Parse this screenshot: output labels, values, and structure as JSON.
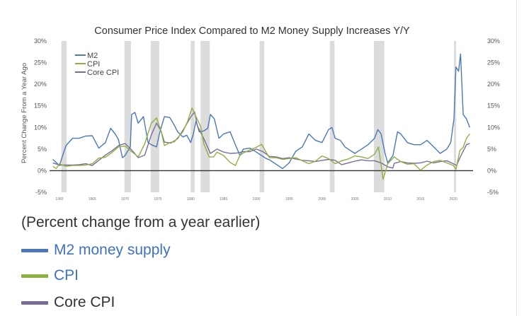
{
  "chart_data": {
    "type": "line",
    "title": "Consumer Price Index Compared to M2 Money Supply Increases Y/Y",
    "ylabel": "Percent Change From a Year Ago",
    "xlabel": "",
    "ylim": [
      -5,
      30
    ],
    "xlim": [
      1958.5,
      2023
    ],
    "y_ticks": [
      -5,
      0,
      5,
      10,
      15,
      20,
      25,
      30
    ],
    "y_tick_labels_left": [
      "-5%",
      "0%",
      "5%",
      "10%",
      "15%",
      "20%",
      "25%",
      "30%"
    ],
    "y_tick_labels_right": [
      "-5%",
      "0%",
      "5%",
      "10%",
      "15%",
      "20%",
      "25%",
      "30%"
    ],
    "x_ticks": [
      1960,
      1965,
      1970,
      1975,
      1980,
      1985,
      1990,
      1995,
      2000,
      2005,
      2010,
      2015,
      2020
    ],
    "x_tick_labels": [
      "1960",
      "1965",
      "1970",
      "1975",
      "1980",
      "1985",
      "1990",
      "1995",
      "2000",
      "2005",
      "2010",
      "2015",
      "2020"
    ],
    "recessions": [
      [
        1960.3,
        1961.1
      ],
      [
        1969.9,
        1970.9
      ],
      [
        1973.9,
        1975.2
      ],
      [
        1980.0,
        1980.6
      ],
      [
        1981.5,
        1982.9
      ],
      [
        1990.5,
        1991.2
      ],
      [
        2001.2,
        2001.9
      ],
      [
        2007.9,
        2009.5
      ],
      [
        2020.1,
        2020.4
      ]
    ],
    "series": [
      {
        "name": "M2",
        "color": "#4a78b8",
        "x": [
          1959,
          1960,
          1960.5,
          1961,
          1962,
          1963,
          1964,
          1965,
          1966,
          1967,
          1967.8,
          1968.5,
          1969,
          1969.6,
          1970,
          1970.8,
          1971,
          1971.5,
          1972,
          1972.8,
          1973.5,
          1974,
          1974.8,
          1975.3,
          1976,
          1976.8,
          1977.5,
          1978,
          1978.8,
          1979.4,
          1980,
          1980.4,
          1980.8,
          1981.3,
          1982,
          1982.6,
          1983,
          1983.6,
          1984.3,
          1985,
          1986,
          1986.8,
          1987.5,
          1988,
          1989,
          1989.8,
          1990.5,
          1991.5,
          1992,
          1993,
          1994,
          1995,
          1996,
          1997,
          1998,
          1999,
          2000,
          2001,
          2001.5,
          2002,
          2002.8,
          2003.5,
          2004,
          2005,
          2006,
          2007,
          2008,
          2008.5,
          2009,
          2009.6,
          2010,
          2010.8,
          2011.5,
          2012,
          2013,
          2014,
          2015,
          2016,
          2017,
          2018,
          2019,
          2019.6,
          2020.1,
          2020.4,
          2020.8,
          2021.1,
          2021.5,
          2022,
          2022.5
        ],
        "values": [
          2.6,
          1.2,
          3.5,
          5.8,
          7.5,
          7.5,
          8.0,
          8.1,
          5.2,
          6.5,
          9.8,
          8.5,
          7.2,
          3.0,
          3.5,
          5.5,
          13.0,
          13.5,
          11.0,
          12.5,
          6.5,
          6.0,
          5.5,
          9.0,
          12.5,
          12.3,
          10.5,
          9.0,
          7.8,
          8.2,
          6.5,
          8.5,
          11.5,
          9.0,
          9.2,
          9.8,
          13.0,
          12.0,
          7.5,
          8.5,
          9.0,
          6.0,
          3.5,
          5.0,
          5.2,
          4.5,
          3.8,
          2.8,
          2.5,
          1.5,
          0.5,
          1.8,
          4.5,
          5.5,
          8.5,
          7.0,
          6.5,
          9.5,
          10.0,
          7.5,
          7.0,
          5.5,
          5.0,
          4.0,
          5.0,
          6.0,
          7.5,
          9.5,
          8.5,
          4.0,
          1.8,
          3.5,
          9.0,
          8.5,
          6.5,
          6.0,
          6.0,
          7.0,
          5.5,
          4.0,
          5.0,
          6.5,
          12.0,
          24.0,
          23.0,
          27.0,
          13.0,
          12.0,
          10.0
        ]
      },
      {
        "name": "CPI",
        "color": "#8db043",
        "x": [
          1959,
          1959.5,
          1960,
          1961,
          1962,
          1963,
          1964,
          1965,
          1966,
          1967,
          1968,
          1969,
          1970,
          1971,
          1972,
          1973,
          1974,
          1974.8,
          1975.5,
          1976,
          1976.8,
          1977.5,
          1978,
          1978.8,
          1979.5,
          1980.2,
          1980.8,
          1981.5,
          1982,
          1982.8,
          1983.5,
          1984,
          1985,
          1986,
          1986.8,
          1987.5,
          1988,
          1989,
          1990,
          1990.8,
          1991.5,
          1992,
          1993,
          1994,
          1995,
          1996,
          1997,
          1998,
          1999,
          2000,
          2001,
          2002,
          2003,
          2004,
          2005,
          2006,
          2007,
          2008,
          2008.6,
          2009.3,
          2010,
          2011,
          2012,
          2013,
          2014,
          2015,
          2016,
          2017,
          2018,
          2019,
          2020,
          2020.4,
          2021,
          2021.5,
          2022,
          2022.5
        ],
        "values": [
          1.0,
          0.5,
          1.6,
          1.0,
          1.2,
          1.2,
          1.3,
          1.6,
          2.9,
          3.1,
          4.2,
          5.5,
          5.7,
          4.4,
          3.2,
          6.2,
          11.0,
          12.2,
          9.1,
          5.8,
          6.5,
          6.7,
          7.6,
          9.0,
          11.3,
          14.5,
          12.5,
          10.3,
          6.2,
          3.2,
          3.2,
          4.3,
          3.5,
          1.9,
          1.2,
          3.6,
          4.1,
          4.8,
          5.4,
          6.1,
          4.2,
          3.0,
          3.0,
          2.6,
          2.8,
          3.0,
          2.3,
          1.6,
          2.2,
          3.4,
          2.8,
          1.6,
          2.3,
          2.7,
          3.4,
          3.2,
          2.8,
          3.8,
          5.5,
          -2.0,
          1.6,
          3.2,
          2.1,
          1.5,
          1.6,
          0.1,
          1.3,
          2.1,
          2.4,
          1.8,
          1.2,
          0.3,
          4.7,
          5.4,
          7.5,
          8.5
        ]
      },
      {
        "name": "Core CPI",
        "color": "#7a6b96",
        "x": [
          1959,
          1960,
          1961,
          1962,
          1963,
          1964,
          1965,
          1966,
          1967,
          1968,
          1969,
          1970,
          1971,
          1972,
          1973,
          1974,
          1974.8,
          1975.5,
          1976,
          1977,
          1978,
          1979,
          1980,
          1980.6,
          1981,
          1982,
          1983,
          1984,
          1985,
          1986,
          1987,
          1988,
          1989,
          1990,
          1991,
          1992,
          1993,
          1994,
          1995,
          1996,
          1997,
          1998,
          1999,
          2000,
          2001,
          2002,
          2003,
          2004,
          2005,
          2006,
          2007,
          2008,
          2009,
          2010,
          2010.8,
          2011,
          2012,
          2013,
          2014,
          2015,
          2016,
          2017,
          2018,
          2019,
          2020,
          2020.5,
          2021,
          2021.5,
          2022,
          2022.5
        ],
        "values": [
          1.8,
          1.3,
          1.3,
          1.3,
          1.4,
          1.6,
          1.2,
          2.4,
          3.6,
          4.6,
          5.8,
          6.3,
          4.8,
          3.0,
          3.6,
          8.3,
          11.0,
          9.1,
          6.6,
          6.4,
          7.4,
          9.8,
          12.4,
          13.6,
          10.4,
          7.4,
          4.0,
          5.0,
          4.3,
          4.0,
          4.1,
          4.4,
          4.4,
          5.0,
          4.4,
          3.3,
          3.2,
          2.8,
          3.0,
          2.7,
          2.4,
          2.3,
          2.1,
          2.4,
          2.6,
          2.4,
          1.4,
          1.8,
          2.2,
          2.5,
          2.3,
          2.3,
          1.8,
          0.9,
          0.6,
          1.7,
          2.1,
          1.8,
          1.7,
          1.8,
          2.2,
          1.8,
          2.1,
          2.3,
          1.6,
          1.2,
          3.0,
          4.5,
          6.0,
          6.3
        ]
      }
    ],
    "legend": [
      "M2",
      "CPI",
      "Core CPI"
    ],
    "legend_position": "top-left"
  },
  "caption": "(Percent change from a year earlier)",
  "bottom_legend": [
    {
      "label": "M2 money supply",
      "color": "#4a78b8",
      "text_color": "#3e72c0"
    },
    {
      "label": "CPI",
      "color": "#8db043",
      "text_color": "#3e72c0"
    },
    {
      "label": "Core CPI",
      "color": "#7a6b96",
      "text_color": "#333333"
    }
  ]
}
